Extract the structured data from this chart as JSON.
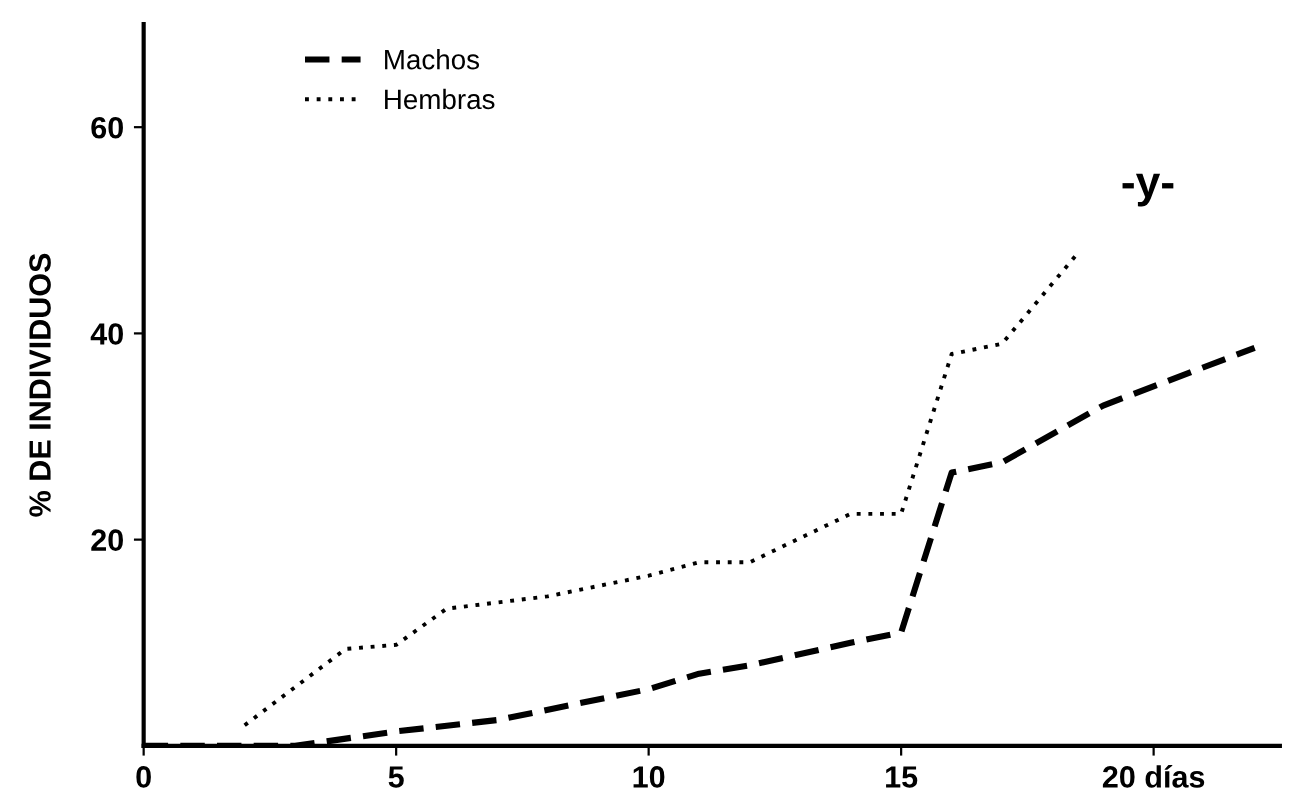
{
  "chart_data": {
    "type": "line",
    "ylabel": "% DE INDIVIDUOS",
    "series": [
      {
        "name": "Machos",
        "color": "#000000",
        "line_style": "dashed",
        "x": [
          0,
          1,
          3,
          5,
          7,
          10,
          11,
          12,
          14,
          15,
          16,
          17,
          19,
          22
        ],
        "values": [
          0,
          0,
          0,
          1.4,
          2.5,
          5.5,
          7,
          7.8,
          10,
          11,
          26.5,
          27.5,
          33,
          38.6
        ]
      },
      {
        "name": "Hembras",
        "color": "#000000",
        "line_style": "dotted",
        "x": [
          2,
          4,
          5,
          6,
          8,
          10,
          11,
          12,
          14,
          15,
          16,
          17,
          18.5
        ],
        "values": [
          2,
          9.4,
          9.8,
          13.3,
          14.5,
          16.5,
          17.8,
          17.8,
          22.5,
          22.5,
          38,
          39,
          47.8
        ]
      }
    ],
    "xlim": [
      0,
      22.5
    ],
    "ylim": [
      0,
      70
    ],
    "xticks": [
      0,
      5,
      10,
      15,
      {
        "value": 20,
        "label": "20 días"
      }
    ],
    "yticks": [
      {
        "value": 20,
        "label": "20"
      },
      {
        "value": 40,
        "label": "40"
      },
      {
        "value": 60,
        "label": "60"
      }
    ],
    "legend": "top left",
    "grid": false,
    "marker": "none",
    "annotations": [
      "-y-"
    ]
  }
}
